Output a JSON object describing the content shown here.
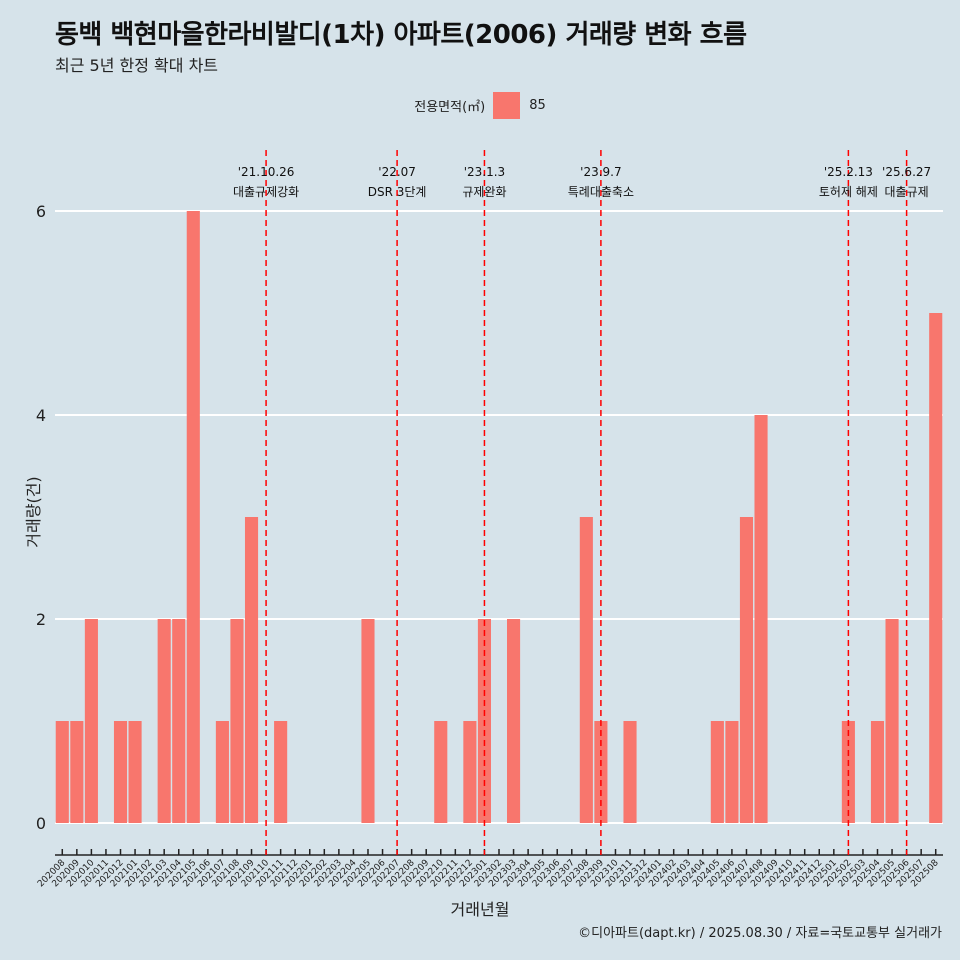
{
  "title": "동백 백현마을한라비발디(1차) 아파트(2006) 거래량 변화 흐름",
  "subtitle": "최근 5년 한정 확대 차트",
  "legend": {
    "title": "전용면적(㎡)",
    "item": "85",
    "color": "#f8766d"
  },
  "caption": "©디아파트(dapt.kr) / 2025.08.30 / 자료=국토교통부 실거래가",
  "chart_data": {
    "type": "bar",
    "xlabel": "거래년월",
    "ylabel": "거래량(건)",
    "ylim": [
      0,
      6.4
    ],
    "yticks": [
      0,
      2,
      4,
      6
    ],
    "bar_color": "#f8766d",
    "categories": [
      "202008",
      "202009",
      "202010",
      "202011",
      "202012",
      "202101",
      "202102",
      "202103",
      "202104",
      "202105",
      "202106",
      "202107",
      "202108",
      "202109",
      "202110",
      "202111",
      "202112",
      "202201",
      "202202",
      "202203",
      "202204",
      "202205",
      "202206",
      "202207",
      "202208",
      "202209",
      "202210",
      "202211",
      "202212",
      "202301",
      "202302",
      "202303",
      "202304",
      "202305",
      "202306",
      "202307",
      "202308",
      "202309",
      "202310",
      "202311",
      "202312",
      "202401",
      "202402",
      "202403",
      "202404",
      "202405",
      "202406",
      "202407",
      "202408",
      "202409",
      "202410",
      "202411",
      "202412",
      "202501",
      "202502",
      "202503",
      "202504",
      "202505",
      "202506",
      "202507",
      "202508"
    ],
    "series": [
      {
        "name": "85",
        "values": [
          1,
          1,
          2,
          0,
          1,
          1,
          0,
          2,
          2,
          6,
          0,
          1,
          2,
          3,
          0,
          1,
          0,
          0,
          0,
          0,
          0,
          2,
          0,
          0,
          0,
          0,
          1,
          0,
          1,
          2,
          0,
          2,
          0,
          0,
          0,
          0,
          3,
          1,
          0,
          1,
          0,
          0,
          0,
          0,
          0,
          1,
          1,
          3,
          4,
          0,
          0,
          0,
          0,
          0,
          1,
          0,
          1,
          2,
          0,
          0,
          5
        ]
      }
    ],
    "annotations": [
      {
        "date_line": "'21.10.26",
        "label": "대출규제강화",
        "at": "202110"
      },
      {
        "date_line": "'22.07",
        "label": "DSR 3단계",
        "at": "202207"
      },
      {
        "date_line": "'23.1.3",
        "label": "규제완화",
        "at": "202301"
      },
      {
        "date_line": "'23.9.7",
        "label": "특례대출축소",
        "at": "202309"
      },
      {
        "date_line": "'25.2.13",
        "label": "토허제 해제",
        "at": "202502"
      },
      {
        "date_line": "'25.6.27",
        "label": "대출규제",
        "at": "202506"
      }
    ]
  }
}
